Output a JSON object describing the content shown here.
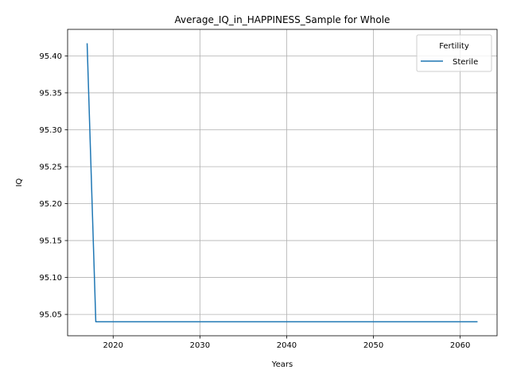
{
  "chart_data": {
    "type": "line",
    "title": "Average_IQ_in_HAPPINESS_Sample for Whole",
    "xlabel": "Years",
    "ylabel": "IQ",
    "xlim": [
      2014.75,
      2064.25
    ],
    "ylim": [
      95.0211,
      95.4359
    ],
    "xticks": [
      2020,
      2030,
      2040,
      2050,
      2060
    ],
    "yticks": [
      95.05,
      95.1,
      95.15,
      95.2,
      95.25,
      95.3,
      95.35,
      95.4
    ],
    "xtick_labels": [
      "2020",
      "2030",
      "2040",
      "2050",
      "2060"
    ],
    "ytick_labels": [
      "95.05",
      "95.10",
      "95.15",
      "95.20",
      "95.25",
      "95.30",
      "95.35",
      "95.40"
    ],
    "grid": true,
    "legend": {
      "title": "Fertility",
      "position": "top-right"
    },
    "series": [
      {
        "name": "Sterile",
        "color": "#1f77b4",
        "x": [
          2017,
          2018,
          2019,
          2020,
          2025,
          2030,
          2035,
          2040,
          2045,
          2050,
          2055,
          2060,
          2062
        ],
        "y": [
          95.4171,
          95.04,
          95.04,
          95.04,
          95.04,
          95.04,
          95.04,
          95.04,
          95.04,
          95.04,
          95.04,
          95.04,
          95.04
        ]
      }
    ]
  }
}
